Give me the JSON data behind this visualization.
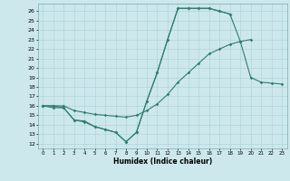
{
  "title": "",
  "xlabel": "Humidex (Indice chaleur)",
  "bg_color": "#cce8ec",
  "line_color": "#2e7d6e",
  "grid_color": "#aacfd4",
  "xlim": [
    -0.5,
    23.5
  ],
  "ylim": [
    11.5,
    26.8
  ],
  "xticks": [
    0,
    1,
    2,
    3,
    4,
    5,
    6,
    7,
    8,
    9,
    10,
    11,
    12,
    13,
    14,
    15,
    16,
    17,
    18,
    19,
    20,
    21,
    22,
    23
  ],
  "yticks": [
    12,
    13,
    14,
    15,
    16,
    17,
    18,
    19,
    20,
    21,
    22,
    23,
    24,
    25,
    26
  ],
  "c1x": [
    0,
    1,
    2,
    3,
    4,
    5,
    6,
    7,
    8,
    9,
    10,
    11,
    12,
    13,
    14,
    15,
    16,
    17,
    18
  ],
  "c1y": [
    16.0,
    15.8,
    15.8,
    14.5,
    14.4,
    13.8,
    13.5,
    13.2,
    12.2,
    13.2,
    16.5,
    19.5,
    23.0,
    26.3,
    26.3,
    26.3,
    26.3,
    26.0,
    25.7
  ],
  "c2x": [
    0,
    1,
    2,
    3,
    4,
    5,
    6,
    7,
    8,
    9,
    10,
    11,
    12,
    13,
    14,
    15,
    16,
    17,
    18,
    19,
    20
  ],
  "c2y": [
    16.0,
    16.0,
    16.0,
    15.5,
    15.3,
    15.1,
    15.0,
    14.9,
    14.8,
    15.0,
    15.5,
    16.2,
    17.2,
    18.5,
    19.5,
    20.5,
    21.5,
    22.0,
    22.5,
    22.8,
    23.0
  ],
  "c3x": [
    0,
    1,
    2,
    3,
    4,
    5,
    6,
    7,
    8,
    9,
    10,
    11,
    12,
    13,
    14,
    15,
    16,
    17,
    18,
    19,
    20,
    21,
    22,
    23
  ],
  "c3y": [
    16.0,
    16.0,
    15.8,
    14.5,
    14.3,
    13.8,
    13.5,
    13.2,
    12.2,
    13.2,
    16.5,
    19.5,
    23.0,
    26.3,
    26.3,
    26.3,
    26.3,
    26.0,
    25.7,
    22.8,
    19.0,
    18.5,
    18.4,
    18.3
  ]
}
